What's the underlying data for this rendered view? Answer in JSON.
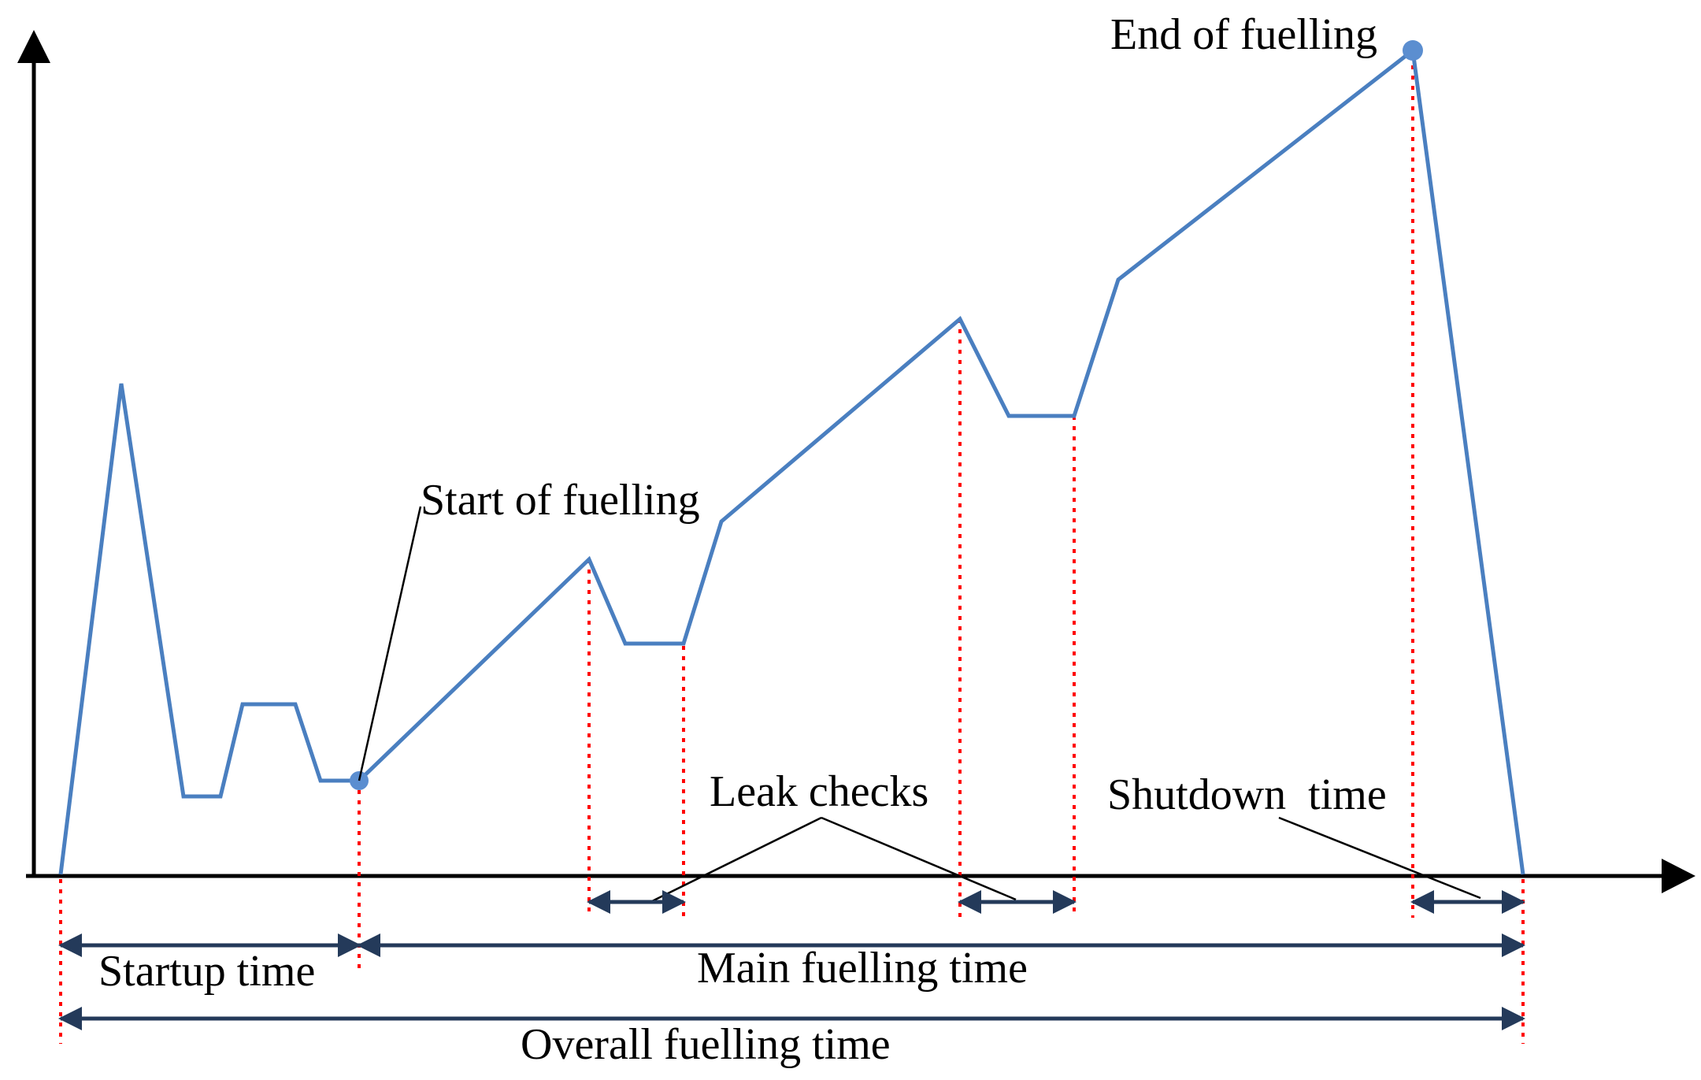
{
  "labels": {
    "end_of_fuelling": "End of fuelling",
    "start_of_fuelling": "Start of fuelling",
    "leak_checks": "Leak checks",
    "shutdown_time": "Shutdown  time",
    "startup_time": "Startup time",
    "main_fuelling_time": "Main fuelling time",
    "overall_fuelling_time": "Overall fuelling time"
  },
  "colors": {
    "curve": "#4a7fc0",
    "marker": "#5b8ed0",
    "axis": "#000000",
    "dotted_guides": "#ff0000",
    "duration_arrows": "#243a5a",
    "leader_lines": "#000000"
  }
}
